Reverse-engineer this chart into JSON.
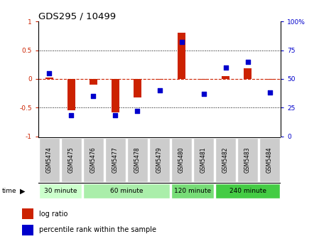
{
  "title": "GDS295 / 10499",
  "samples": [
    "GSM5474",
    "GSM5475",
    "GSM5476",
    "GSM5477",
    "GSM5478",
    "GSM5479",
    "GSM5480",
    "GSM5481",
    "GSM5482",
    "GSM5483",
    "GSM5484"
  ],
  "log_ratio": [
    0.02,
    -0.55,
    -0.1,
    -0.58,
    -0.32,
    -0.02,
    0.8,
    -0.02,
    0.05,
    0.18,
    -0.02
  ],
  "percentile_rank": [
    55,
    18,
    35,
    18,
    22,
    40,
    82,
    37,
    60,
    65,
    38
  ],
  "group_configs": [
    {
      "label": "30 minute",
      "start": 0,
      "end": 1,
      "color": "#ccffcc"
    },
    {
      "label": "60 minute",
      "start": 2,
      "end": 5,
      "color": "#aaeeaa"
    },
    {
      "label": "120 minute",
      "start": 6,
      "end": 7,
      "color": "#77dd77"
    },
    {
      "label": "240 minute",
      "start": 8,
      "end": 10,
      "color": "#44cc44"
    }
  ],
  "bar_color": "#cc2200",
  "dot_color": "#0000cc",
  "dashed_line_color": "#cc2200",
  "left_ylim": [
    -1,
    1
  ],
  "right_ylim": [
    0,
    100
  ],
  "left_yticks": [
    -1,
    -0.5,
    0,
    0.5,
    1
  ],
  "left_yticklabels": [
    "-1",
    "-0.5",
    "0",
    "0.5",
    "1"
  ],
  "right_yticks": [
    0,
    25,
    50,
    75,
    100
  ],
  "right_yticklabels": [
    "0",
    "25",
    "50",
    "75",
    "100%"
  ],
  "dotted_hlines": [
    0.5,
    -0.5
  ],
  "background_color": "#ffffff",
  "tick_label_bg": "#cccccc",
  "time_label": "time"
}
